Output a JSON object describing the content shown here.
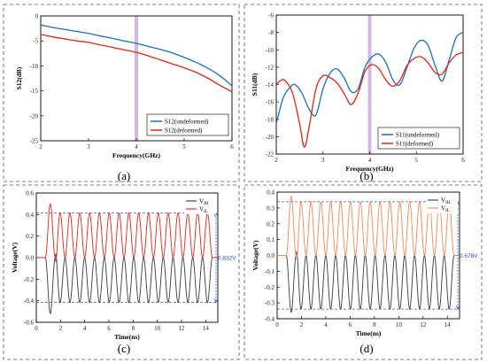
{
  "chart_data": [
    {
      "type": "line",
      "panel": "(a)",
      "xlabel": "Frequency(GHz)",
      "ylabel": "S12(dB)",
      "xlim": [
        2,
        6
      ],
      "ylim": [
        -25,
        0
      ],
      "xticks": [
        "2",
        "3",
        "4",
        "5",
        "6"
      ],
      "yticks": [
        "0",
        "-5",
        "-10",
        "-15",
        "-20",
        "-25"
      ],
      "highlight_band": {
        "x": 4,
        "color": "#c9a6dc"
      },
      "legend_position": "bottom-right",
      "series": [
        {
          "name": "S12(undeformed)",
          "color": "#1f6fb2",
          "x": [
            2.0,
            2.25,
            2.5,
            2.75,
            3.0,
            3.25,
            3.5,
            3.75,
            4.0,
            4.25,
            4.5,
            4.75,
            5.0,
            5.25,
            5.5,
            5.75,
            6.0
          ],
          "y": [
            -1.8,
            -2.3,
            -2.7,
            -3.1,
            -3.5,
            -4.0,
            -4.5,
            -5.0,
            -5.5,
            -6.1,
            -6.7,
            -7.4,
            -8.3,
            -9.3,
            -10.5,
            -12.0,
            -14.0
          ]
        },
        {
          "name": "S12(deformed)",
          "color": "#e0261c",
          "x": [
            2.0,
            2.25,
            2.5,
            2.75,
            3.0,
            3.25,
            3.5,
            3.75,
            4.0,
            4.25,
            4.5,
            4.75,
            5.0,
            5.25,
            5.5,
            5.75,
            6.0
          ],
          "y": [
            -3.7,
            -4.2,
            -4.6,
            -5.0,
            -5.3,
            -5.8,
            -6.3,
            -6.8,
            -7.3,
            -8.0,
            -8.8,
            -9.6,
            -10.4,
            -11.3,
            -12.5,
            -13.9,
            -15.2
          ]
        }
      ]
    },
    {
      "type": "line",
      "panel": "(b)",
      "xlabel": "Frequency(GHz)",
      "ylabel": "S11(dB)",
      "xlim": [
        2,
        6
      ],
      "ylim": [
        -22,
        -6
      ],
      "xticks": [
        "2",
        "3",
        "4",
        "5",
        "6"
      ],
      "yticks": [
        "-6",
        "-8",
        "-10",
        "-12",
        "-14",
        "-16",
        "-18",
        "-20",
        "-22"
      ],
      "highlight_band": {
        "x": 4,
        "color": "#c9a6dc"
      },
      "legend_position": "bottom-right",
      "series": [
        {
          "name": "S11(undeformed)",
          "color": "#1f6fb2",
          "x": [
            2.0,
            2.15,
            2.3,
            2.4,
            2.55,
            2.7,
            2.85,
            3.0,
            3.15,
            3.3,
            3.45,
            3.6,
            3.75,
            3.9,
            4.05,
            4.2,
            4.35,
            4.5,
            4.65,
            4.8,
            4.95,
            5.1,
            5.25,
            5.4,
            5.55,
            5.7,
            5.85,
            6.0
          ],
          "y": [
            -18.5,
            -15.5,
            -14.3,
            -14.0,
            -15.0,
            -16.8,
            -17.5,
            -14.5,
            -12.7,
            -12.2,
            -13.2,
            -14.8,
            -14.5,
            -12.0,
            -10.8,
            -10.5,
            -11.5,
            -13.5,
            -14.0,
            -12.0,
            -9.8,
            -8.9,
            -9.5,
            -11.8,
            -13.6,
            -11.2,
            -8.6,
            -8.0
          ]
        },
        {
          "name": "S11(deformed)",
          "color": "#e0261c",
          "x": [
            2.0,
            2.1,
            2.2,
            2.35,
            2.5,
            2.6,
            2.7,
            2.85,
            3.0,
            3.15,
            3.3,
            3.45,
            3.6,
            3.75,
            3.9,
            4.05,
            4.2,
            4.35,
            4.5,
            4.65,
            4.8,
            4.95,
            5.1,
            5.25,
            5.4,
            5.55,
            5.7,
            5.85,
            6.0
          ],
          "y": [
            -14.0,
            -13.5,
            -13.6,
            -15.0,
            -18.5,
            -21.2,
            -19.0,
            -14.5,
            -13.0,
            -13.2,
            -13.8,
            -15.0,
            -16.3,
            -15.0,
            -12.5,
            -11.7,
            -12.2,
            -13.5,
            -14.2,
            -13.5,
            -11.8,
            -11.0,
            -10.8,
            -11.5,
            -12.6,
            -12.8,
            -11.5,
            -10.6,
            -10.3
          ]
        }
      ]
    },
    {
      "type": "line",
      "panel": "(c)",
      "xlabel": "Time(ns)",
      "ylabel": "Voltage(V)",
      "xlim": [
        0,
        15
      ],
      "ylim": [
        -0.6,
        0.6
      ],
      "xticks": [
        "0",
        "2",
        "4",
        "6",
        "8",
        "10",
        "12",
        "14"
      ],
      "yticks": [
        "-0.6",
        "-0.4",
        "-0.2",
        "0.0",
        "0.2",
        "0.4",
        "0.6"
      ],
      "legend_position": "top-right",
      "dashed_levels": [
        0.416,
        -0.416
      ],
      "annotation": "0.832V",
      "waveform": {
        "cycles": 17,
        "start": 0.75,
        "end": 14.55,
        "amplitude": 0.416,
        "first_pulse_overshoot": 0.5,
        "first_pulse_undershoot": -0.52
      },
      "series": [
        {
          "name_main": "V",
          "name_sub": "IH",
          "color": "#3a3a3a"
        },
        {
          "name_main": "V",
          "name_sub": "IL",
          "color": "#e0261c"
        }
      ]
    },
    {
      "type": "line",
      "panel": "(d)",
      "xlabel": "Time(ns)",
      "ylabel": "Voltage(V)",
      "xlim": [
        0,
        15
      ],
      "ylim": [
        -0.4,
        0.4
      ],
      "xticks": [
        "0",
        "2",
        "4",
        "6",
        "8",
        "10",
        "12",
        "14"
      ],
      "yticks": [
        "-0.4",
        "-0.3",
        "-0.2",
        "-0.1",
        "0.0",
        "0.1",
        "0.2",
        "0.3",
        "0.4"
      ],
      "legend_position": "top-right",
      "dashed_levels": [
        0.339,
        -0.339
      ],
      "annotation": "0.678V",
      "waveform": {
        "cycles": 17,
        "start": 0.75,
        "end": 14.55,
        "amplitude": 0.339,
        "first_pulse_overshoot": 0.375,
        "first_pulse_undershoot": -0.36
      },
      "series": [
        {
          "name_main": "V",
          "name_sub": "IH",
          "color": "#3a3a3a"
        },
        {
          "name_main": "V",
          "name_sub": "IL",
          "color": "#f08a5a"
        }
      ]
    }
  ]
}
